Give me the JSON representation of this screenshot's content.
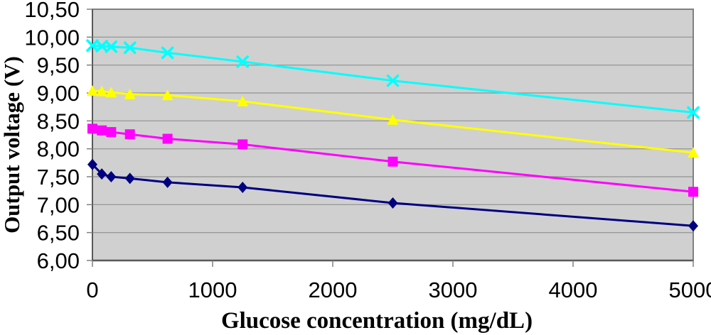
{
  "chart_data": {
    "type": "line",
    "title": "",
    "xlabel": "Glucose concentration (mg/dL)",
    "ylabel": "Output voltage (V)",
    "x": [
      0,
      78,
      156,
      312,
      625,
      1250,
      2500,
      5000
    ],
    "series": [
      {
        "name": "navy-diamond-series",
        "marker": "diamond",
        "color": "#000080",
        "values": [
          7.72,
          7.55,
          7.5,
          7.47,
          7.4,
          7.31,
          7.03,
          6.62
        ]
      },
      {
        "name": "magenta-square-series",
        "marker": "square",
        "color": "#FF00FF",
        "values": [
          8.36,
          8.33,
          8.3,
          8.26,
          8.18,
          8.08,
          7.77,
          7.23
        ]
      },
      {
        "name": "yellow-triangle-series",
        "marker": "triangle",
        "color": "#FFFF00",
        "values": [
          9.04,
          9.03,
          9.01,
          8.98,
          8.96,
          8.85,
          8.52,
          7.93
        ]
      },
      {
        "name": "cyan-x-series",
        "marker": "x",
        "color": "#00FFFF",
        "values": [
          9.85,
          9.84,
          9.83,
          9.81,
          9.72,
          9.56,
          9.22,
          8.65
        ]
      }
    ],
    "xlim": [
      0,
      5000
    ],
    "ylim": [
      6.0,
      10.5
    ],
    "x_ticks": [
      0,
      1000,
      2000,
      3000,
      4000,
      5000
    ],
    "x_tick_labels": [
      "0",
      "1000",
      "2000",
      "3000",
      "4000",
      "5000"
    ],
    "y_ticks": [
      6.0,
      6.5,
      7.0,
      7.5,
      8.0,
      8.5,
      9.0,
      9.5,
      10.0,
      10.5
    ],
    "y_tick_labels": [
      "6,00",
      "6,50",
      "7,00",
      "7,50",
      "8,00",
      "8,50",
      "9,00",
      "9,50",
      "10,00",
      "10,50"
    ],
    "grid": "horizontal",
    "legend": "none",
    "colors": {
      "plot_background": "#D0D0D0",
      "gridline": "#9A9A9A",
      "plot_border": "#808080",
      "axis_line": "#595959",
      "tick": "#808080",
      "text": "#000000"
    }
  }
}
